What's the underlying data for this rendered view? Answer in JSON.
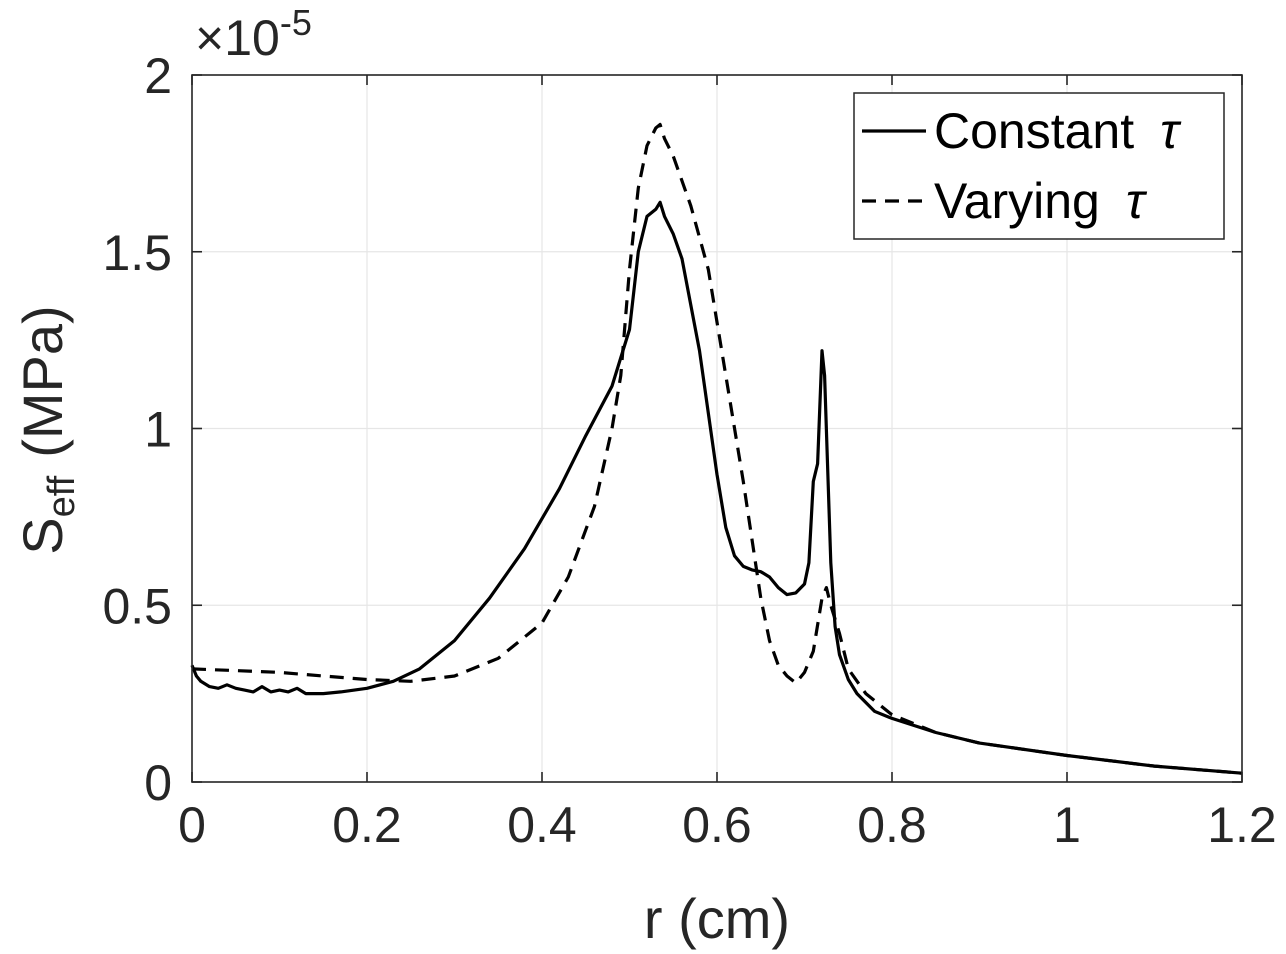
{
  "chart_data": {
    "type": "line",
    "xlabel": "r (cm)",
    "ylabel_main": "S",
    "ylabel_sub": "eff",
    "ylabel_unit": "(MPa)",
    "exponent_prefix": "×10",
    "exponent_power": "-5",
    "xlim": [
      0,
      1.2
    ],
    "ylim": [
      0,
      2
    ],
    "x_ticks": [
      0,
      0.2,
      0.4,
      0.6,
      0.8,
      1,
      1.2
    ],
    "x_tick_labels": [
      "0",
      "0.2",
      "0.4",
      "0.6",
      "0.8",
      "1",
      "1.2"
    ],
    "y_ticks": [
      0,
      0.5,
      1,
      1.5,
      2
    ],
    "y_tick_labels": [
      "0",
      "0.5",
      "1",
      "1.5",
      "2"
    ],
    "grid": true,
    "legend_position": "top-right",
    "series": [
      {
        "name": "Constant",
        "symbol": "τ",
        "style": "solid",
        "color": "#000000",
        "x": [
          0,
          0.005,
          0.01,
          0.02,
          0.03,
          0.04,
          0.05,
          0.06,
          0.07,
          0.08,
          0.09,
          0.1,
          0.11,
          0.12,
          0.13,
          0.15,
          0.17,
          0.2,
          0.23,
          0.26,
          0.3,
          0.34,
          0.38,
          0.42,
          0.45,
          0.48,
          0.5,
          0.51,
          0.52,
          0.53,
          0.535,
          0.54,
          0.55,
          0.56,
          0.58,
          0.6,
          0.61,
          0.62,
          0.63,
          0.64,
          0.65,
          0.66,
          0.67,
          0.68,
          0.69,
          0.7,
          0.705,
          0.71,
          0.715,
          0.72,
          0.723,
          0.727,
          0.73,
          0.735,
          0.74,
          0.75,
          0.76,
          0.78,
          0.8,
          0.85,
          0.9,
          1.0,
          1.1,
          1.2
        ],
        "y": [
          0.33,
          0.3,
          0.285,
          0.27,
          0.265,
          0.275,
          0.265,
          0.26,
          0.255,
          0.27,
          0.255,
          0.26,
          0.255,
          0.265,
          0.25,
          0.25,
          0.255,
          0.265,
          0.285,
          0.32,
          0.4,
          0.52,
          0.66,
          0.83,
          0.98,
          1.12,
          1.28,
          1.5,
          1.6,
          1.62,
          1.64,
          1.6,
          1.55,
          1.48,
          1.22,
          0.87,
          0.72,
          0.64,
          0.61,
          0.6,
          0.595,
          0.58,
          0.55,
          0.53,
          0.535,
          0.56,
          0.62,
          0.85,
          0.9,
          1.22,
          1.15,
          0.85,
          0.62,
          0.44,
          0.36,
          0.29,
          0.25,
          0.2,
          0.18,
          0.14,
          0.11,
          0.075,
          0.045,
          0.025
        ]
      },
      {
        "name": "Varying",
        "symbol": "τ",
        "style": "dashed",
        "color": "#000000",
        "x": [
          0,
          0.05,
          0.1,
          0.15,
          0.2,
          0.25,
          0.3,
          0.35,
          0.4,
          0.43,
          0.46,
          0.48,
          0.49,
          0.5,
          0.51,
          0.52,
          0.53,
          0.535,
          0.54,
          0.55,
          0.57,
          0.59,
          0.61,
          0.63,
          0.65,
          0.66,
          0.67,
          0.68,
          0.69,
          0.7,
          0.71,
          0.72,
          0.725,
          0.73,
          0.74,
          0.75,
          0.77,
          0.8,
          0.85,
          0.9,
          1.0,
          1.1,
          1.2
        ],
        "y": [
          0.32,
          0.315,
          0.31,
          0.3,
          0.29,
          0.285,
          0.3,
          0.35,
          0.45,
          0.58,
          0.78,
          1.0,
          1.15,
          1.45,
          1.68,
          1.8,
          1.85,
          1.86,
          1.82,
          1.77,
          1.63,
          1.45,
          1.15,
          0.85,
          0.52,
          0.4,
          0.33,
          0.3,
          0.28,
          0.31,
          0.37,
          0.52,
          0.55,
          0.5,
          0.42,
          0.32,
          0.25,
          0.19,
          0.14,
          0.11,
          0.075,
          0.045,
          0.025
        ]
      }
    ]
  }
}
